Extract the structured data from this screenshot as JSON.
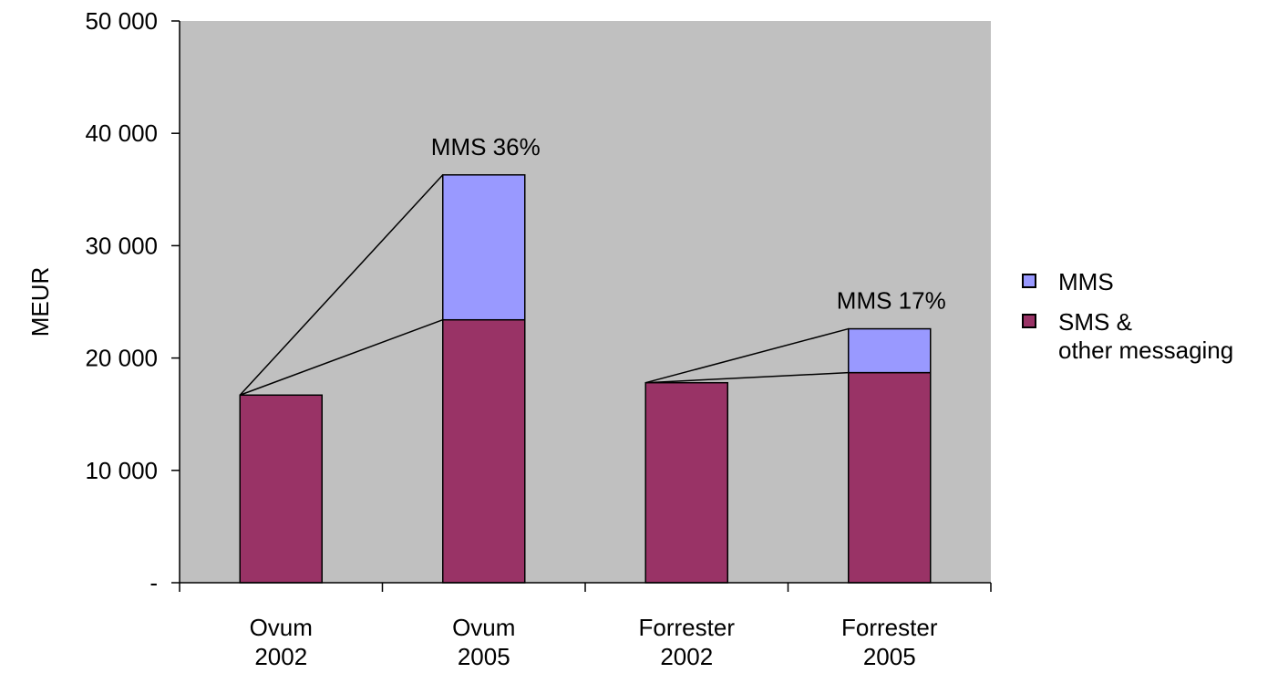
{
  "chart_data": {
    "type": "bar",
    "stacked": true,
    "categories": [
      [
        "Ovum",
        "2002"
      ],
      [
        "Ovum",
        "2005"
      ],
      [
        "Forrester",
        "2002"
      ],
      [
        "Forrester",
        "2005"
      ]
    ],
    "series": [
      {
        "name_lines": [
          "SMS &",
          "other messaging"
        ],
        "color": "#993366",
        "values": [
          16700,
          23400,
          17800,
          18700
        ]
      },
      {
        "name_lines": [
          "MMS"
        ],
        "color": "#9999ff",
        "values": [
          0,
          12900,
          0,
          3900
        ]
      }
    ],
    "ylabel": "MEUR",
    "ylim": [
      0,
      50000
    ],
    "yticks": [
      0,
      10000,
      20000,
      30000,
      40000,
      50000
    ],
    "ytick_labels": [
      "-",
      "10 000",
      "20 000",
      "30 000",
      "40 000",
      "50 000"
    ],
    "plot_background": "#c0c0c0",
    "grid": false,
    "legend_position": "right",
    "legend_order": [
      1,
      0
    ],
    "annotations": [
      {
        "text": "MMS 36%",
        "category_index": 1
      },
      {
        "text": "MMS 17%",
        "category_index": 3
      }
    ],
    "series_lines": [
      [
        0,
        1
      ],
      [
        2,
        3
      ]
    ]
  }
}
